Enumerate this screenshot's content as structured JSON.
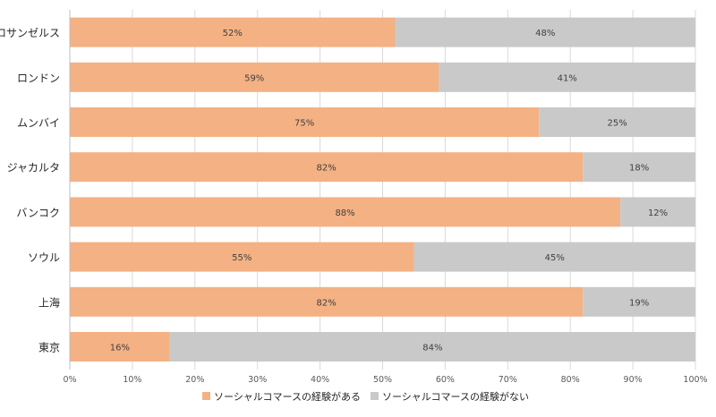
{
  "chart_data": {
    "type": "bar",
    "orientation": "horizontal",
    "stacked": true,
    "title": "",
    "xlabel": "",
    "ylabel": "",
    "xlim": [
      0,
      100
    ],
    "grid": true,
    "legend_position": "bottom",
    "x_ticks": [
      "0%",
      "10%",
      "20%",
      "30%",
      "40%",
      "50%",
      "60%",
      "70%",
      "80%",
      "90%",
      "100%"
    ],
    "categories": [
      "ロサンゼルス",
      "ロンドン",
      "ムンバイ",
      "ジャカルタ",
      "バンコク",
      "ソウル",
      "上海",
      "東京"
    ],
    "series": [
      {
        "name": "ソーシャルコマースの経験がある",
        "color": "#f4b183",
        "values": [
          52,
          59,
          75,
          82,
          88,
          55,
          82,
          16
        ],
        "labels": [
          "52%",
          "59%",
          "75%",
          "82%",
          "88%",
          "55%",
          "82%",
          "16%"
        ]
      },
      {
        "name": "ソーシャルコマースの経験がない",
        "color": "#c9c9c9",
        "values": [
          48,
          41,
          25,
          18,
          12,
          45,
          19,
          84
        ],
        "labels": [
          "48%",
          "41%",
          "25%",
          "18%",
          "12%",
          "45%",
          "19%",
          "84%"
        ]
      }
    ]
  }
}
